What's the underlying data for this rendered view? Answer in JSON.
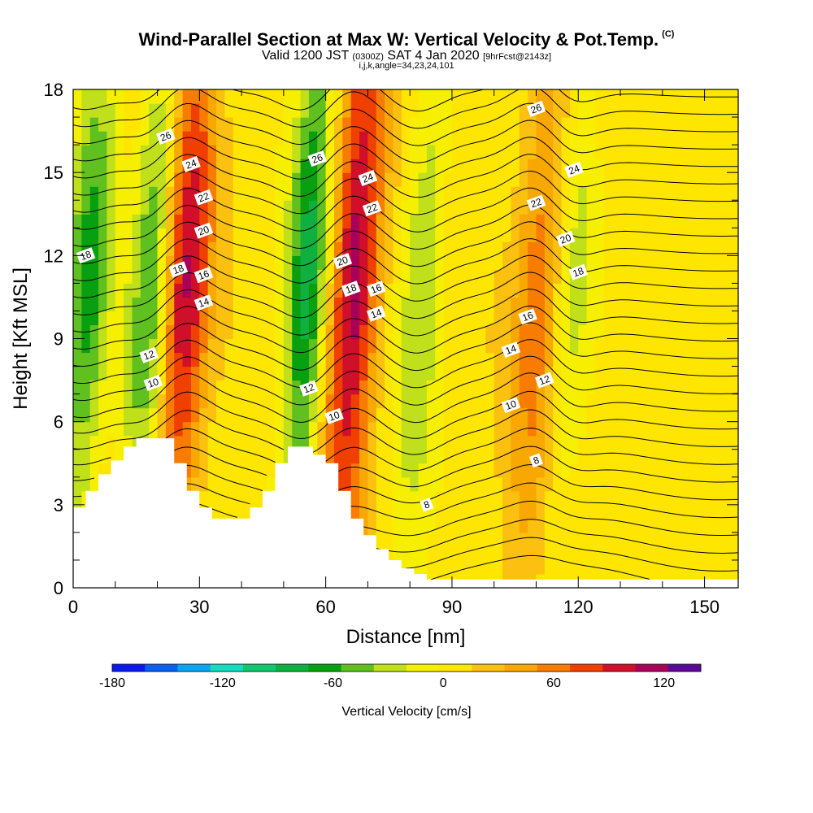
{
  "title": {
    "main": "Wind-Parallel Section at Max W: Vertical Velocity & Pot.Temp.",
    "copyright": "(C)",
    "valid_prefix": "Valid 1200 JST",
    "valid_utc": "(0300Z)",
    "valid_date": "SAT 4 Jan 2020",
    "forecast": "[9hrFcst@2143z]",
    "indices": "i,j,k,angle=34,23,24,101"
  },
  "chart_data": {
    "type": "heatmap",
    "xlabel": "Distance [nm]",
    "ylabel": "Height [Kft MSL]",
    "xlim": [
      0,
      158
    ],
    "ylim": [
      0,
      18
    ],
    "xticks": [
      "0",
      "30",
      "60",
      "90",
      "120",
      "150"
    ],
    "xtick_values": [
      0,
      30,
      60,
      90,
      120,
      150
    ],
    "yticks": [
      "0",
      "3",
      "6",
      "9",
      "12",
      "15",
      "18"
    ],
    "ytick_values": [
      0,
      3,
      6,
      9,
      12,
      15,
      18
    ],
    "colorbar": {
      "label": "Vertical Velocity [cm/s]",
      "ticks": [
        "-180",
        "-120",
        "-60",
        "0",
        "60",
        "120"
      ],
      "tick_values": [
        -180,
        -120,
        -60,
        0,
        60,
        120
      ],
      "range": [
        -180,
        140
      ],
      "colors": [
        "#0a1aee",
        "#0a5ef0",
        "#0aa6f0",
        "#14dcc0",
        "#12c86e",
        "#10b040",
        "#08a010",
        "#60c020",
        "#c0e01c",
        "#f6f000",
        "#ffe600",
        "#fbc010",
        "#f8a800",
        "#f87c00",
        "#f04000",
        "#d0102a",
        "#a8005a",
        "#5a0a96"
      ]
    },
    "vertical_velocity_bands": [
      {
        "x": 3,
        "sign": "down",
        "peak": -70
      },
      {
        "x": 18,
        "sign": "down",
        "peak": -70
      },
      {
        "x": 26,
        "sign": "up",
        "peak": 100
      },
      {
        "x": 55,
        "sign": "down",
        "peak": -90
      },
      {
        "x": 66,
        "sign": "up",
        "peak": 110
      },
      {
        "x": 82,
        "sign": "down",
        "peak": -45
      },
      {
        "x": 110,
        "sign": "up",
        "peak": 55
      },
      {
        "x": 118,
        "sign": "down",
        "peak": -35
      }
    ],
    "terrain": {
      "x": [
        0,
        3,
        6,
        9,
        12,
        15,
        18,
        21,
        24,
        27,
        30,
        33,
        36,
        39,
        42,
        45,
        48,
        51,
        54,
        57,
        60,
        63,
        66,
        69,
        72,
        75,
        78,
        81,
        84,
        87,
        90,
        158
      ],
      "height": [
        2.9,
        3.5,
        4.1,
        4.6,
        5.1,
        5.4,
        5.4,
        5.4,
        4.5,
        3.5,
        2.9,
        2.5,
        2.5,
        2.5,
        2.9,
        3.5,
        4.5,
        5.1,
        5.1,
        4.8,
        4.5,
        3.5,
        2.5,
        1.9,
        1.4,
        1.0,
        0.7,
        0.5,
        0.3,
        0.3,
        0.3,
        0.3
      ]
    },
    "theta_contours": {
      "levels": [
        8,
        10,
        12,
        14,
        16,
        18,
        20,
        22,
        24,
        26
      ],
      "labels": [
        {
          "text": "26",
          "x": 22,
          "y": 16.3
        },
        {
          "text": "24",
          "x": 28,
          "y": 15.3
        },
        {
          "text": "22",
          "x": 31,
          "y": 14.1
        },
        {
          "text": "20",
          "x": 31,
          "y": 12.9
        },
        {
          "text": "18",
          "x": 25,
          "y": 11.5
        },
        {
          "text": "16",
          "x": 31,
          "y": 11.3
        },
        {
          "text": "14",
          "x": 31,
          "y": 10.3
        },
        {
          "text": "12",
          "x": 18,
          "y": 8.4
        },
        {
          "text": "10",
          "x": 19,
          "y": 7.4
        },
        {
          "text": "18",
          "x": 3,
          "y": 12.0
        },
        {
          "text": "26",
          "x": 58,
          "y": 15.5
        },
        {
          "text": "24",
          "x": 70,
          "y": 14.8
        },
        {
          "text": "22",
          "x": 71,
          "y": 13.7
        },
        {
          "text": "20",
          "x": 64,
          "y": 11.8
        },
        {
          "text": "18",
          "x": 66,
          "y": 10.8
        },
        {
          "text": "16",
          "x": 72,
          "y": 10.8
        },
        {
          "text": "14",
          "x": 72,
          "y": 9.9
        },
        {
          "text": "12",
          "x": 56,
          "y": 7.2
        },
        {
          "text": "10",
          "x": 62,
          "y": 6.2
        },
        {
          "text": "8",
          "x": 84,
          "y": 3.0
        },
        {
          "text": "26",
          "x": 110,
          "y": 17.3
        },
        {
          "text": "24",
          "x": 119,
          "y": 15.1
        },
        {
          "text": "22",
          "x": 110,
          "y": 13.9
        },
        {
          "text": "20",
          "x": 117,
          "y": 12.6
        },
        {
          "text": "18",
          "x": 120,
          "y": 11.4
        },
        {
          "text": "16",
          "x": 108,
          "y": 9.8
        },
        {
          "text": "14",
          "x": 104,
          "y": 8.6
        },
        {
          "text": "12",
          "x": 112,
          "y": 7.5
        },
        {
          "text": "10",
          "x": 104,
          "y": 6.6
        },
        {
          "text": "8",
          "x": 110,
          "y": 4.6
        }
      ]
    }
  }
}
